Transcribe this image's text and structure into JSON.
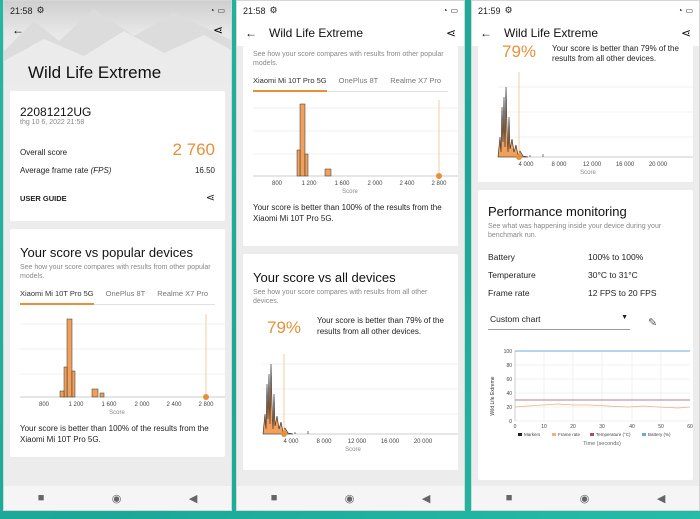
{
  "colors": {
    "accent": "#e6913a",
    "bar": "#f0a05a",
    "background": "#1fb3a0"
  },
  "status": {
    "time1": "21:58",
    "time2": "21:58",
    "time3": "21:59"
  },
  "app": {
    "title": "Wild Life Extreme"
  },
  "device": {
    "name": "22081212UG",
    "date": "thg 10 6, 2022 21:58",
    "overall_label": "Overall score",
    "overall_value": "2 760",
    "fps_label": "Average frame rate",
    "fps_unit": "(FPS)",
    "fps_value": "16.50",
    "user_guide": "USER GUIDE"
  },
  "popular": {
    "heading": "Your score vs popular devices",
    "description": "See how your score compares with results from other popular models.",
    "tabs": [
      "Xiaomi Mi 10T Pro 5G",
      "OnePlus 8T",
      "Realme X7 Pro"
    ],
    "x_ticks": [
      "800",
      "1 200",
      "1 600",
      "2 000",
      "2 400",
      "2 800"
    ],
    "x_label": "Score",
    "result": "Your score is better than 100% of the results from the Xiaomi Mi 10T Pro 5G."
  },
  "all": {
    "heading": "Your score vs all devices",
    "description": "See how your score compares with results from all other devices.",
    "percent": "79%",
    "result": "Your score is better than 79% of the results from all other devices.",
    "x_ticks": [
      "4 000",
      "8 000",
      "12 000",
      "16 000",
      "20 000"
    ],
    "x_label": "Score"
  },
  "perf": {
    "heading": "Performance monitoring",
    "description": "See what was happening inside your device during your benchmark run.",
    "rows": [
      {
        "label": "Battery",
        "value": "100% to 100%"
      },
      {
        "label": "Temperature",
        "value": "30°C to 31°C"
      },
      {
        "label": "Frame rate",
        "value": "12 FPS to 20 FPS"
      }
    ],
    "dropdown": "Custom chart",
    "y_axis_title": "Wild Life Extreme",
    "y_ticks": [
      "100",
      "80",
      "60",
      "40",
      "20",
      "0"
    ],
    "x_ticks": [
      "0",
      "10",
      "20",
      "30",
      "40",
      "50",
      "60"
    ],
    "legend": [
      "Markers",
      "Frame rate",
      "Temperature (°C)",
      "Battery (%)"
    ],
    "x_label": "Time (seconds)"
  }
}
